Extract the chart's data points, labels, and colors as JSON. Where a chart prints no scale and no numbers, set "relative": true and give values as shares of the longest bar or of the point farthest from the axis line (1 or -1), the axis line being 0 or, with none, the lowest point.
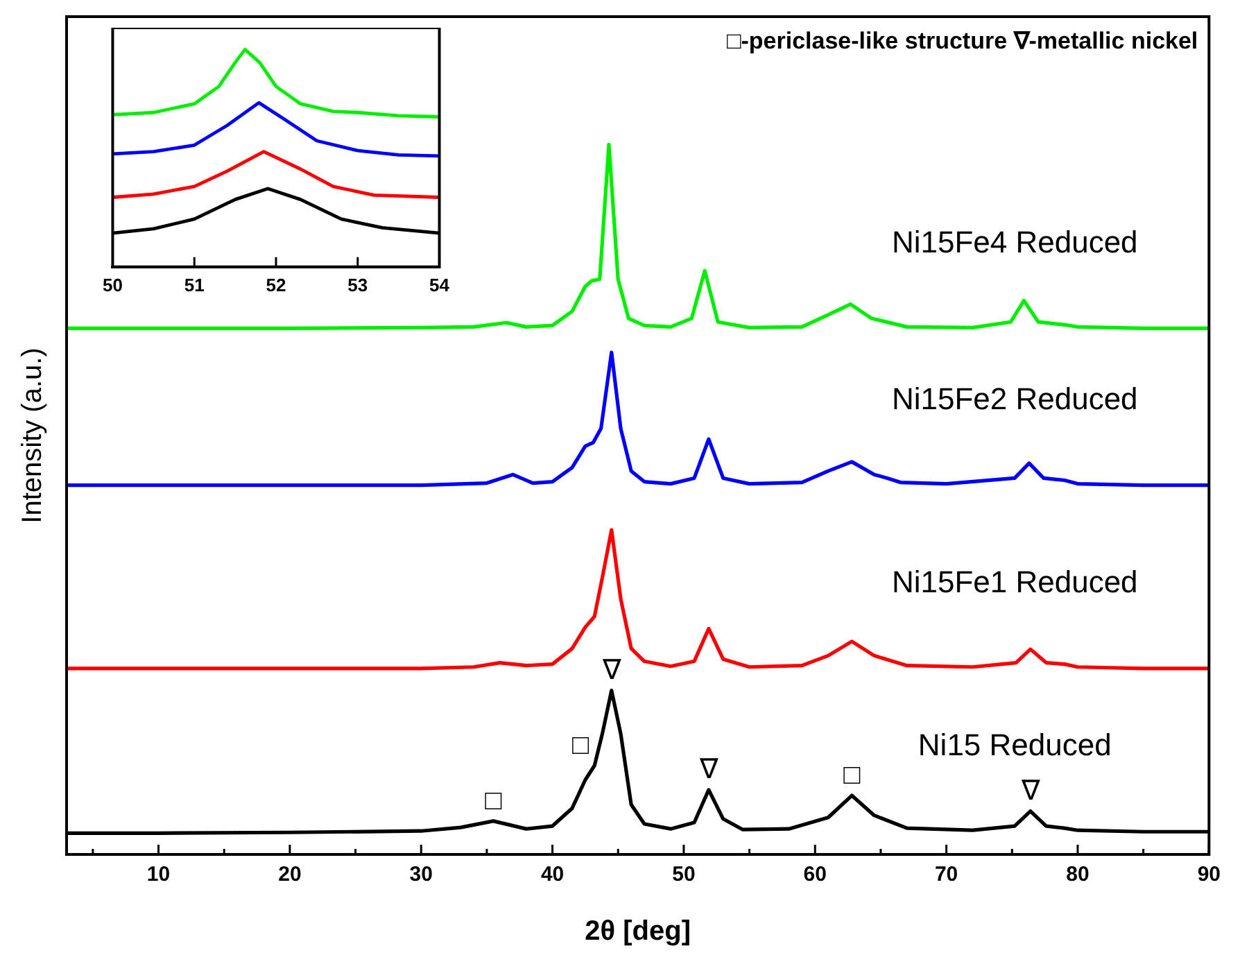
{
  "chart_data": [
    {
      "type": "line",
      "xlabel": "2θ [deg]",
      "ylabel": "Intensity (a.u.)",
      "relative": true,
      "marker": "none",
      "line_style": "solid",
      "xlim": [
        3,
        90
      ],
      "xticks": [
        {
          "value": 5,
          "label": null
        },
        10,
        {
          "value": 15,
          "label": null
        },
        20,
        {
          "value": 25,
          "label": null
        },
        30,
        {
          "value": 35,
          "label": null
        },
        40,
        {
          "value": 45,
          "label": null
        },
        50,
        {
          "value": 55,
          "label": null
        },
        60,
        {
          "value": 65,
          "label": null
        },
        70,
        {
          "value": 75,
          "label": null
        },
        80,
        {
          "value": 85,
          "label": null
        },
        90
      ],
      "series": [
        {
          "name": "Ni15 Reduced",
          "color": "#000000",
          "x": [
            3,
            10,
            20,
            30,
            33,
            35.5,
            38,
            40,
            41.5,
            42.5,
            43.2,
            43.8,
            44.5,
            45.2,
            46,
            47,
            49,
            50.8,
            51.9,
            53,
            54.5,
            58,
            61,
            62.8,
            64.5,
            67,
            72,
            75.2,
            76.4,
            77.6,
            79,
            80,
            85,
            90
          ],
          "values": [
            0.03,
            0.03,
            0.031,
            0.033,
            0.038,
            0.047,
            0.036,
            0.04,
            0.065,
            0.105,
            0.125,
            0.17,
            0.231,
            0.17,
            0.07,
            0.043,
            0.036,
            0.045,
            0.091,
            0.05,
            0.035,
            0.036,
            0.052,
            0.083,
            0.055,
            0.037,
            0.034,
            0.04,
            0.061,
            0.04,
            0.037,
            0.034,
            0.032,
            0.032
          ]
        },
        {
          "name": "Ni15Fe1 Reduced",
          "color": "#ff0000",
          "x": [
            3,
            20,
            30,
            34,
            36,
            38,
            40,
            41.5,
            42.5,
            43.2,
            43.8,
            44.5,
            45.2,
            46,
            47,
            49,
            50.8,
            51.9,
            53,
            55,
            59,
            61,
            62.8,
            64.5,
            67,
            72,
            75.3,
            76.4,
            77.6,
            79,
            80,
            85,
            90
          ],
          "values": [
            0.262,
            0.262,
            0.262,
            0.264,
            0.27,
            0.266,
            0.268,
            0.29,
            0.32,
            0.335,
            0.39,
            0.457,
            0.36,
            0.29,
            0.272,
            0.265,
            0.272,
            0.318,
            0.275,
            0.264,
            0.266,
            0.28,
            0.3,
            0.28,
            0.266,
            0.264,
            0.27,
            0.289,
            0.27,
            0.268,
            0.264,
            0.262,
            0.262
          ]
        },
        {
          "name": "Ni15Fe2 Reduced",
          "color": "#0000ff",
          "x": [
            3,
            20,
            30,
            35,
            37,
            38.5,
            40,
            41.5,
            42.5,
            43.1,
            43.7,
            44.5,
            45.2,
            46,
            47,
            49,
            50.8,
            51.9,
            53,
            55,
            59,
            61,
            62.8,
            64.5,
            65.5,
            66.5,
            70,
            75.2,
            76.3,
            77.4,
            79,
            80,
            85,
            90
          ],
          "values": [
            0.52,
            0.52,
            0.52,
            0.523,
            0.535,
            0.523,
            0.525,
            0.545,
            0.575,
            0.58,
            0.6,
            0.707,
            0.6,
            0.54,
            0.525,
            0.522,
            0.53,
            0.585,
            0.53,
            0.522,
            0.524,
            0.54,
            0.553,
            0.535,
            0.53,
            0.524,
            0.522,
            0.53,
            0.551,
            0.53,
            0.527,
            0.522,
            0.52,
            0.52
          ]
        },
        {
          "name": "Ni15Fe4 Reduced",
          "color": "#00ee00",
          "x": [
            3,
            20,
            30,
            34,
            36.5,
            38,
            40,
            41.5,
            42.5,
            43,
            43.6,
            44.3,
            45,
            45.8,
            47,
            49,
            50.6,
            51.6,
            52.6,
            55,
            59,
            61,
            62.7,
            64.3,
            67,
            72,
            74.9,
            75.9,
            77,
            79,
            80,
            85,
            90
          ],
          "values": [
            0.741,
            0.741,
            0.742,
            0.743,
            0.749,
            0.743,
            0.745,
            0.765,
            0.8,
            0.808,
            0.81,
            1.0,
            0.81,
            0.755,
            0.745,
            0.743,
            0.755,
            0.822,
            0.75,
            0.742,
            0.743,
            0.76,
            0.775,
            0.755,
            0.743,
            0.742,
            0.75,
            0.78,
            0.75,
            0.746,
            0.743,
            0.741,
            0.741
          ]
        }
      ],
      "annotations": [
        "□-periclase-like structure ∇-metallic nickel",
        {
          "text": "∇",
          "x": 44.5,
          "y": 0.231
        },
        {
          "text": "□",
          "x": 43.2,
          "y": 0.125
        },
        {
          "text": "∇",
          "x": 51.9,
          "y": 0.091
        },
        {
          "text": "□",
          "x": 62.8,
          "y": 0.083
        },
        {
          "text": "∇",
          "x": 76.4,
          "y": 0.061
        },
        {
          "text": "□",
          "x": 35.5,
          "y": 0.047
        }
      ]
    },
    {
      "type": "line",
      "relative": true,
      "marker": "none",
      "line_style": "solid",
      "tick_labels": "x",
      "xlim": [
        50,
        54
      ],
      "xticks": [
        50,
        51,
        52,
        53,
        54
      ],
      "series": [
        {
          "color": "#000000",
          "x": [
            50,
            50.5,
            51,
            51.5,
            51.9,
            52.3,
            52.8,
            53.3,
            54
          ],
          "values": [
            0.155,
            0.175,
            0.22,
            0.31,
            0.36,
            0.31,
            0.22,
            0.18,
            0.155
          ]
        },
        {
          "color": "#ff0000",
          "x": [
            50,
            50.5,
            51,
            51.4,
            51.85,
            52.3,
            52.7,
            53.2,
            54
          ],
          "values": [
            0.32,
            0.335,
            0.37,
            0.44,
            0.53,
            0.45,
            0.37,
            0.33,
            0.32
          ]
        },
        {
          "color": "#0000ff",
          "x": [
            50,
            50.5,
            51,
            51.4,
            51.79,
            52.1,
            52.5,
            53,
            53.5,
            54
          ],
          "values": [
            0.52,
            0.53,
            0.56,
            0.65,
            0.755,
            0.68,
            0.58,
            0.535,
            0.515,
            0.51
          ]
        },
        {
          "color": "#00ee00",
          "x": [
            50,
            50.5,
            51,
            51.3,
            51.5,
            51.62,
            51.8,
            52,
            52.3,
            52.7,
            53,
            53.5,
            54
          ],
          "values": [
            0.7,
            0.71,
            0.75,
            0.83,
            0.94,
            1.0,
            0.94,
            0.83,
            0.75,
            0.715,
            0.71,
            0.695,
            0.69
          ]
        }
      ]
    }
  ]
}
